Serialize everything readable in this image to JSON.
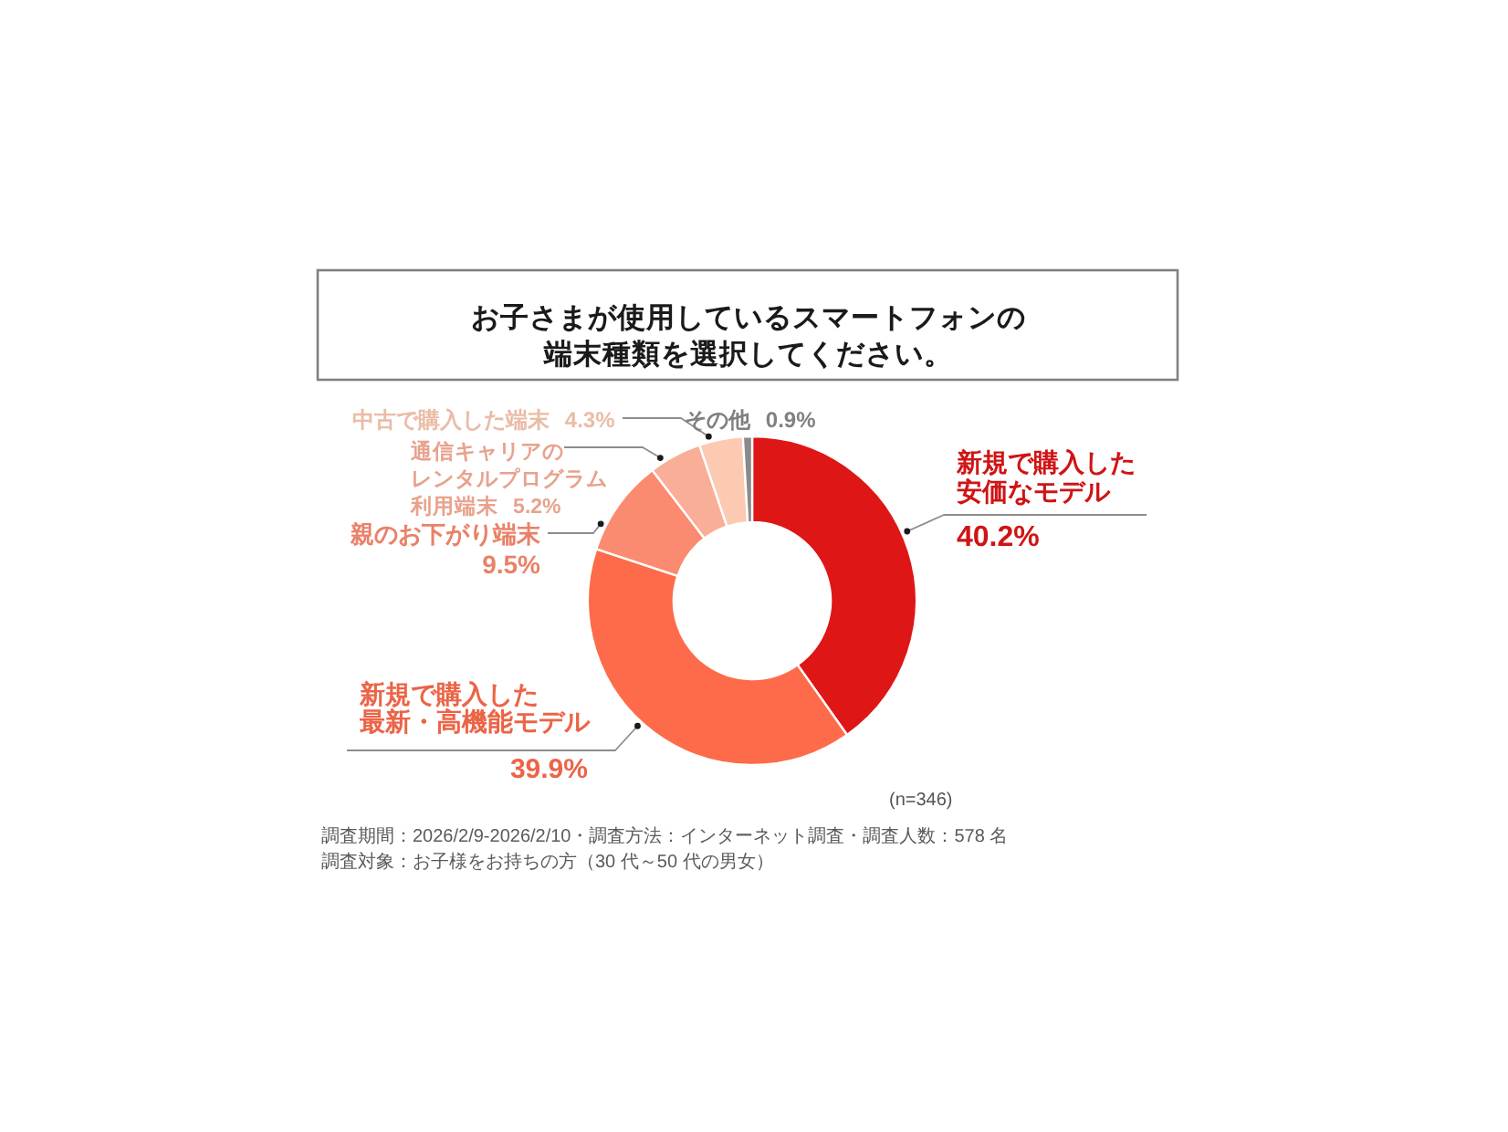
{
  "chart_data": {
    "type": "donut",
    "title": "お子さまが使用しているスマートフォンの端末種類を選択してください。",
    "categories": [
      "新規で購入した安価なモデル",
      "新規で購入した最新・高機能モデル",
      "親のお下がり端末",
      "通信キャリアのレンタルプログラム利用端末",
      "中古で購入した端末",
      "その他"
    ],
    "values": [
      40.2,
      39.9,
      9.5,
      5.2,
      4.3,
      0.9
    ],
    "colors": [
      "#df1616",
      "#fe6b4b",
      "#fb8b70",
      "#f9ae97",
      "#fccab3",
      "#8a8a8a"
    ],
    "value_labels": [
      "40.2%",
      "39.9%",
      "9.5%",
      "5.2%",
      "4.3%",
      "0.9%"
    ],
    "annotations": [
      "(n=346)",
      "調査期間：2026/2/9-2026/2/10・調査方法：インターネット調査・調査人数：578 名",
      "調査対象：お子様をお持ちの方（30 代～50 代の男女）"
    ]
  }
}
